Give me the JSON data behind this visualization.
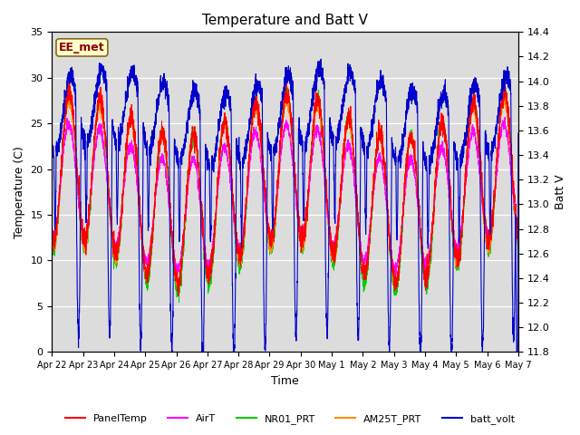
{
  "title": "Temperature and Batt V",
  "xlabel": "Time",
  "ylabel_left": "Temperature (C)",
  "ylabel_right": "Batt V",
  "ylim_left": [
    0,
    35
  ],
  "ylim_right": [
    11.8,
    14.4
  ],
  "bg_color": "#dcdcdc",
  "fig_color": "#ffffff",
  "annotation_text": "EE_met",
  "annotation_color": "#8b0000",
  "annotation_bg": "#ffffcc",
  "x_tick_labels": [
    "Apr 22",
    "Apr 23",
    "Apr 24",
    "Apr 25",
    "Apr 26",
    "Apr 27",
    "Apr 28",
    "Apr 29",
    "Apr 30",
    "May 1",
    "May 2",
    "May 3",
    "May 4",
    "May 5",
    "May 6",
    "May 7"
  ],
  "legend_labels": [
    "PanelTemp",
    "AirT",
    "NR01_PRT",
    "AM25T_PRT",
    "batt_volt"
  ],
  "legend_colors": [
    "#ff0000",
    "#ff00ff",
    "#00cc00",
    "#ff8c00",
    "#0000cc"
  ],
  "series_colors": {
    "panel": "#ff0000",
    "air": "#ff00ff",
    "nr01": "#00cc00",
    "am25": "#ff8c00",
    "batt": "#0000cc"
  },
  "n_points": 3600,
  "duration_days": 15,
  "temp_yticks": [
    0,
    5,
    10,
    15,
    20,
    25,
    30,
    35
  ],
  "batt_yticks": [
    11.8,
    12.0,
    12.2,
    12.4,
    12.6,
    12.8,
    13.0,
    13.2,
    13.4,
    13.6,
    13.8,
    14.0,
    14.2,
    14.4
  ]
}
